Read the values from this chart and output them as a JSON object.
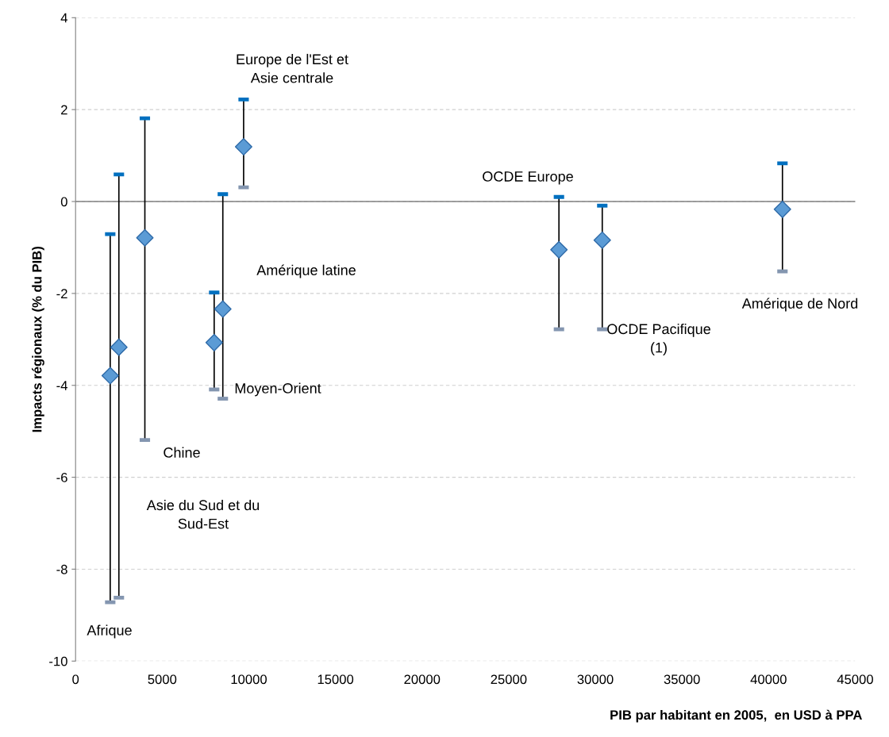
{
  "chart_data": {
    "type": "scatter",
    "xlabel": "PIB par habitant en 2005,  en USD à PPA",
    "ylabel": "Impacts régionaux (% du PIB)",
    "x": [
      2000,
      2500,
      4000,
      8000,
      8500,
      9700,
      27900,
      30400,
      40800
    ],
    "series": [
      {
        "color": "#5b9bd5",
        "values": [
          -3.79,
          -3.17,
          -0.79,
          -3.07,
          -2.34,
          1.19,
          -1.05,
          -0.84,
          -0.17
        ],
        "errors": [
          [
            -8.72,
            -0.71
          ],
          [
            -8.62,
            0.59
          ],
          [
            -5.19,
            1.81
          ],
          [
            -4.09,
            -1.98
          ],
          [
            -4.29,
            0.16
          ],
          [
            0.31,
            2.22
          ],
          [
            -2.78,
            0.1
          ],
          [
            -2.78,
            -0.09
          ],
          [
            -1.52,
            0.83
          ]
        ]
      }
    ],
    "marker": "diamond",
    "xlim": [
      0,
      45000
    ],
    "xticks": [
      0,
      5000,
      10000,
      15000,
      20000,
      25000,
      30000,
      35000,
      40000,
      45000
    ],
    "ylim": [
      -10,
      4
    ],
    "yticks": [
      -10,
      -8,
      -6,
      -4,
      -2,
      0,
      2,
      4
    ],
    "grid": "y",
    "ref_lines": [
      {
        "axis": "y",
        "value": 0,
        "color": "#808080"
      }
    ],
    "annotations": [
      "Europe de l'Est et\nAsie centrale",
      "OCDE Europe",
      "Amérique latine",
      "Amérique de Nord",
      "OCDE Pacifique\n(1)",
      "Moyen-Orient",
      "Chine",
      "Asie du Sud et du\nSud-Est",
      "Afrique"
    ]
  }
}
